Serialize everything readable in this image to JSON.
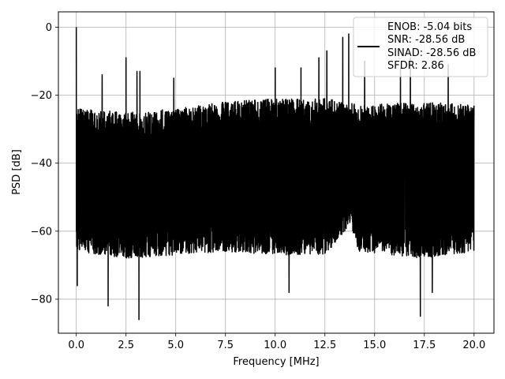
{
  "chart_data": {
    "type": "line",
    "title": "",
    "xlabel": "Frequency [MHz]",
    "ylabel": "PSD [dB]",
    "xlim": [
      -0.9,
      21.0
    ],
    "ylim": [
      -90.0,
      4.5
    ],
    "xticks": [
      0.0,
      2.5,
      5.0,
      7.5,
      10.0,
      12.5,
      15.0,
      17.5,
      20.0
    ],
    "xtick_labels": [
      "0.0",
      "2.5",
      "5.0",
      "7.5",
      "10.0",
      "12.5",
      "15.0",
      "17.5",
      "20.0"
    ],
    "yticks": [
      0,
      -20,
      -40,
      -60,
      -80
    ],
    "ytick_labels": [
      "0",
      "−20",
      "−40",
      "−60",
      "−80"
    ],
    "grid": true,
    "legend_position": "upper-right",
    "legend": [
      "ENOB: -5.04 bits",
      "SNR: -28.56 dB",
      "SINAD: -28.56 dB",
      "SFDR: 2.86"
    ],
    "line_color": "#000000",
    "grid_color": "#b0b0b0",
    "series": [
      {
        "name": "ENOB: -5.04 bits\nSNR: -28.56 dB\nSINAD: -28.56 dB\nSFDR: 2.86",
        "x_range": [
          0.0,
          20.0
        ],
        "points": 4000,
        "dc_peak_db": 0.0,
        "envelope": [
          {
            "x": 0.0,
            "top": -24,
            "bottom": -66
          },
          {
            "x": 2.5,
            "top": -25,
            "bottom": -68
          },
          {
            "x": 5.0,
            "top": -24,
            "bottom": -67
          },
          {
            "x": 7.5,
            "top": -22,
            "bottom": -66
          },
          {
            "x": 10.0,
            "top": -21,
            "bottom": -67
          },
          {
            "x": 12.5,
            "top": -21,
            "bottom": -67
          },
          {
            "x": 13.8,
            "top": -22,
            "bottom": -58
          },
          {
            "x": 14.2,
            "top": -23,
            "bottom": -66
          },
          {
            "x": 17.5,
            "top": -22,
            "bottom": -68
          },
          {
            "x": 20.0,
            "top": -23,
            "bottom": -66
          }
        ],
        "notable_peaks": [
          {
            "x": 0.0,
            "y": 0.0
          },
          {
            "x": 1.3,
            "y": -14
          },
          {
            "x": 2.5,
            "y": -9
          },
          {
            "x": 3.05,
            "y": -13
          },
          {
            "x": 3.2,
            "y": -13
          },
          {
            "x": 4.9,
            "y": -15
          },
          {
            "x": 10.0,
            "y": -12
          },
          {
            "x": 11.3,
            "y": -12
          },
          {
            "x": 12.2,
            "y": -9
          },
          {
            "x": 12.6,
            "y": -7
          },
          {
            "x": 13.4,
            "y": -3
          },
          {
            "x": 13.7,
            "y": -2
          },
          {
            "x": 14.5,
            "y": -10
          },
          {
            "x": 16.3,
            "y": -12
          },
          {
            "x": 16.8,
            "y": -9
          },
          {
            "x": 18.7,
            "y": -11
          }
        ],
        "notable_dips": [
          {
            "x": 0.05,
            "y": -76
          },
          {
            "x": 1.6,
            "y": -82
          },
          {
            "x": 3.15,
            "y": -86
          },
          {
            "x": 10.7,
            "y": -78
          },
          {
            "x": 17.3,
            "y": -85
          },
          {
            "x": 17.9,
            "y": -78
          }
        ]
      }
    ]
  }
}
